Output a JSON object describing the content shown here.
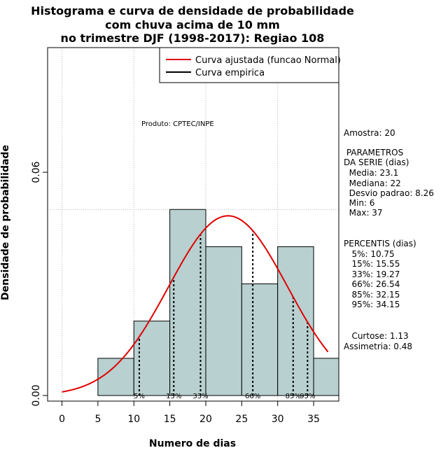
{
  "chart_data": {
    "type": "histogram",
    "title_lines": [
      "Histograma e curva de densidade de probabilidade",
      "com chuva acima de 10 mm",
      "no trimestre DJF (1998-2017): Regiao 108"
    ],
    "xlabel": "Numero de dias",
    "ylabel": "Densidade de probabilidade",
    "xlim": [
      -2,
      38.5
    ],
    "ylim": [
      -0.0015,
      0.0935
    ],
    "x_ticks": [
      0,
      5,
      10,
      15,
      20,
      25,
      30,
      35
    ],
    "y_ticks": [
      0.0,
      0.06
    ],
    "y_tick_labels": [
      "0.00",
      "0.06"
    ],
    "bins": [
      {
        "x0": 5,
        "x1": 10,
        "density": 0.01
      },
      {
        "x0": 10,
        "x1": 15,
        "density": 0.02
      },
      {
        "x0": 15,
        "x1": 20,
        "density": 0.05
      },
      {
        "x0": 20,
        "x1": 25,
        "density": 0.04
      },
      {
        "x0": 25,
        "x1": 30,
        "density": 0.03
      },
      {
        "x0": 30,
        "x1": 35,
        "density": 0.04
      },
      {
        "x0": 35,
        "x1": 38.5,
        "density": 0.01
      }
    ],
    "normal_fit": {
      "mean": 23.1,
      "sd": 8.26,
      "x_from": 0,
      "x_to": 37
    },
    "grid_x": [
      0,
      10,
      20,
      30
    ],
    "grid_y": [
      0.05
    ],
    "bar_color": "#b8d0d0",
    "curve_color": "#e00000",
    "percentile_lines": [
      {
        "label": "5%",
        "value": 10.75
      },
      {
        "label": "15%",
        "value": 15.55
      },
      {
        "label": "33%",
        "value": 19.27
      },
      {
        "label": "66%",
        "value": 26.54
      },
      {
        "label": "85%",
        "value": 32.15
      },
      {
        "label": "95%",
        "value": 34.15
      }
    ],
    "legend": {
      "position": "top-right",
      "entries": [
        {
          "label": "Curva ajustada (funcao Normal)",
          "color": "#e00000"
        },
        {
          "label": "Curva empirica",
          "color": "#000000"
        }
      ]
    },
    "annotation": "Produto: CPTEC/INPE"
  },
  "side_panel": {
    "sample": "Amostra: 20",
    "params_title_1": " PARAMETROS",
    "params_title_2": "DA SERIE (dias)",
    "media": "  Media: 23.1",
    "mediana": "  Mediana: 22",
    "desvio": "  Desvio padrao: 8.26",
    "min": "  Min: 6",
    "max": "  Max: 37",
    "perc_title": "PERCENTIS (dias)",
    "p5": "   5%: 10.75",
    "p15": "   15%: 15.55",
    "p33": "   33%: 19.27",
    "p66": "   66%: 26.54",
    "p85": "   85%: 32.15",
    "p95": "   95%: 34.15",
    "curtose": "   Curtose: 1.13",
    "assimetria": "Assimetria: 0.48"
  }
}
